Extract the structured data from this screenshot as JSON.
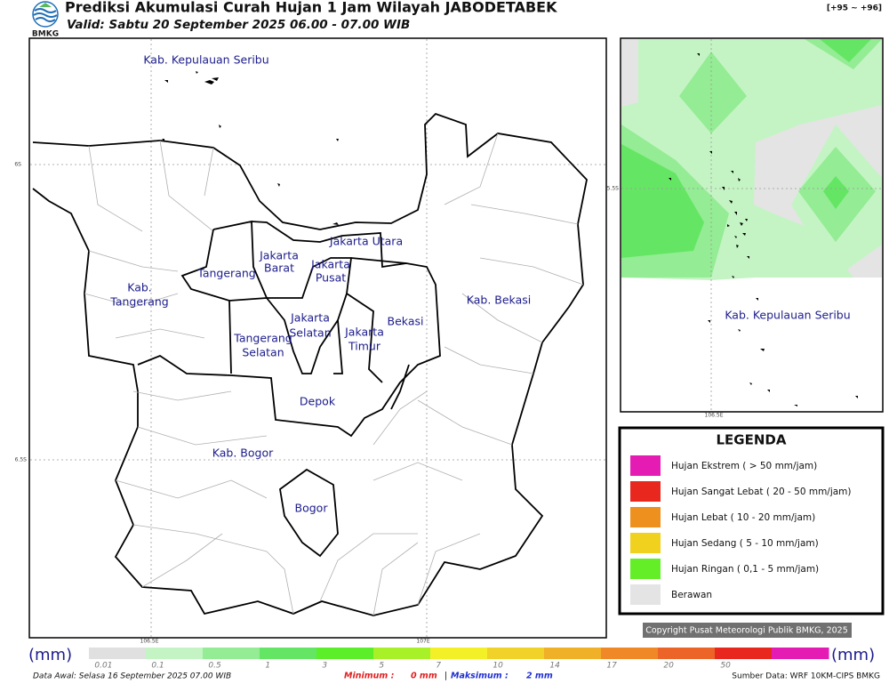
{
  "header": {
    "title": "Prediksi Akumulasi Curah Hujan 1 Jam Wilayah JABODETABEK",
    "subtitle": "Valid: Sabtu 20 September 2025 06.00 - 07.00 WIB",
    "logo": "BMKG",
    "range": "[+95 ~ +96]"
  },
  "map": {
    "labels": [
      "Kab. Kepulauan Seribu",
      "Jakarta Utara",
      "Jakarta",
      "Barat",
      "Jakarta",
      "Pusat",
      "Tangerang",
      "Kab.",
      "Tangerang",
      "Jakarta",
      "Selatan",
      "Jakarta",
      "Timur",
      "Bekasi",
      "Kab. Bekasi",
      "Tangerang",
      "Selatan",
      "Depok",
      "Kab. Bogor",
      "Bogor"
    ],
    "grid_labels": [
      "6S",
      "6.5S",
      "106.5E",
      "107E"
    ]
  },
  "inset": {
    "label": "Kab. Kepulauan Seribu",
    "grid_labels": [
      "5.5S",
      "106.5E"
    ]
  },
  "legend": {
    "title": "LEGENDA",
    "items": [
      {
        "label": "Hujan Ekstrem ( > 50 mm/jam)",
        "color": "#e41cb4"
      },
      {
        "label": "Hujan Sangat Lebat ( 20 - 50 mm/jam)",
        "color": "#e8281e"
      },
      {
        "label": "Hujan Lebat ( 10 - 20 mm/jam)",
        "color": "#ee901e"
      },
      {
        "label": "Hujan Sedang ( 5 - 10 mm/jam)",
        "color": "#f0d21e"
      },
      {
        "label": "Hujan Ringan ( 0,1 - 5 mm/jam)",
        "color": "#64ee28"
      },
      {
        "label": "Berawan",
        "color": "#e4e4e4"
      }
    ]
  },
  "copyright": "Copyright Pusat Meteorologi Publik BMKG, 2025",
  "colorbar": {
    "unit": "(mm)",
    "ticks": [
      "0.01",
      "0.1",
      "0.5",
      "1",
      "3",
      "5",
      "7",
      "10",
      "14",
      "17",
      "20",
      "50"
    ],
    "colors": [
      "#e0e0e0",
      "#c4f4c4",
      "#94ec94",
      "#64e664",
      "#5cee28",
      "#a8f028",
      "#f4f028",
      "#f0d228",
      "#f0b028",
      "#f08828",
      "#ec6428",
      "#e8281e",
      "#e41cb4"
    ]
  },
  "footer": {
    "data_awal": "Data Awal: Selasa 16 September 2025 07.00 WIB",
    "minimum_label": "Minimum :",
    "minimum": "0 mm",
    "separator": "|",
    "maximum_label": "Maksimum :",
    "maximum": "2 mm",
    "source": "Sumber Data: WRF 10KM-CIPS BMKG"
  }
}
